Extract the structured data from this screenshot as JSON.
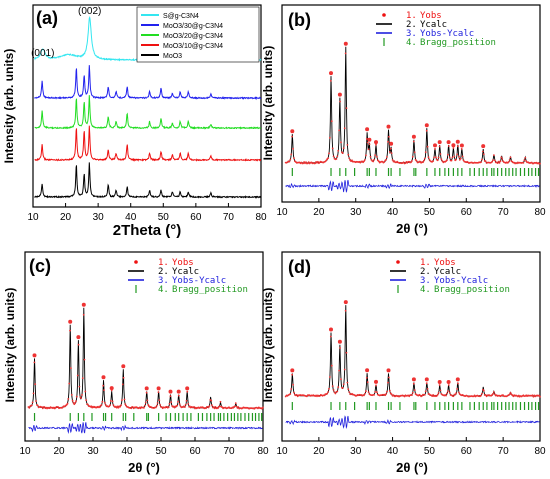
{
  "chart_data": [
    {
      "panel": "(a)",
      "type": "line",
      "xlabel": "2Theta (°)",
      "ylabel": "Intensity (arb. units)",
      "xlim": [
        10,
        80
      ],
      "xticks": [
        10,
        20,
        30,
        40,
        50,
        60,
        70,
        80
      ],
      "peak_labels": [
        {
          "text": "(001)",
          "x": 13
        },
        {
          "text": "(002)",
          "x": 27.4
        }
      ],
      "legend_location": "top-right",
      "series": [
        {
          "name": "S@g-C3N4",
          "color": "#33e6f0",
          "peaks": [
            {
              "x": 13.0,
              "h": 0.25,
              "w": 1.6
            },
            {
              "x": 27.4,
              "h": 1.0,
              "w": 1.2
            },
            {
              "x": 21.0,
              "h": 0.12,
              "w": 6.0
            }
          ]
        },
        {
          "name": "MoO3/30@g-C3N4",
          "color": "#2222ee",
          "peaks": [
            {
              "x": 12.8,
              "h": 0.55
            },
            {
              "x": 23.3,
              "h": 0.95
            },
            {
              "x": 25.7,
              "h": 0.7
            },
            {
              "x": 27.3,
              "h": 1.0
            },
            {
              "x": 33.1,
              "h": 0.35
            },
            {
              "x": 35.5,
              "h": 0.2
            },
            {
              "x": 38.9,
              "h": 0.35
            },
            {
              "x": 45.8,
              "h": 0.2
            },
            {
              "x": 49.3,
              "h": 0.3
            },
            {
              "x": 52.8,
              "h": 0.15
            },
            {
              "x": 55.2,
              "h": 0.2
            },
            {
              "x": 57.7,
              "h": 0.2
            },
            {
              "x": 64.6,
              "h": 0.12
            }
          ]
        },
        {
          "name": "MoO3/20@g-C3N4",
          "color": "#22dd22",
          "peaks": [
            {
              "x": 12.8,
              "h": 0.55
            },
            {
              "x": 23.3,
              "h": 0.95
            },
            {
              "x": 25.7,
              "h": 0.8
            },
            {
              "x": 27.3,
              "h": 1.0
            },
            {
              "x": 33.1,
              "h": 0.35
            },
            {
              "x": 35.5,
              "h": 0.2
            },
            {
              "x": 38.9,
              "h": 0.45
            },
            {
              "x": 45.8,
              "h": 0.2
            },
            {
              "x": 49.3,
              "h": 0.3
            },
            {
              "x": 52.8,
              "h": 0.15
            },
            {
              "x": 55.2,
              "h": 0.2
            },
            {
              "x": 57.7,
              "h": 0.2
            },
            {
              "x": 64.6,
              "h": 0.12
            }
          ]
        },
        {
          "name": "MoO3/10@g-C3N4",
          "color": "#ee1111",
          "peaks": [
            {
              "x": 12.8,
              "h": 0.45
            },
            {
              "x": 23.3,
              "h": 0.95
            },
            {
              "x": 25.7,
              "h": 0.85
            },
            {
              "x": 27.3,
              "h": 1.0
            },
            {
              "x": 33.1,
              "h": 0.3
            },
            {
              "x": 35.5,
              "h": 0.2
            },
            {
              "x": 38.9,
              "h": 0.45
            },
            {
              "x": 45.8,
              "h": 0.2
            },
            {
              "x": 49.3,
              "h": 0.25
            },
            {
              "x": 52.8,
              "h": 0.15
            },
            {
              "x": 55.2,
              "h": 0.2
            },
            {
              "x": 57.7,
              "h": 0.2
            },
            {
              "x": 64.6,
              "h": 0.12
            }
          ]
        },
        {
          "name": "MoO3",
          "color": "#000000",
          "peaks": [
            {
              "x": 12.8,
              "h": 0.4
            },
            {
              "x": 23.3,
              "h": 0.95
            },
            {
              "x": 25.7,
              "h": 0.65
            },
            {
              "x": 27.3,
              "h": 1.0
            },
            {
              "x": 33.1,
              "h": 0.35
            },
            {
              "x": 35.5,
              "h": 0.2
            },
            {
              "x": 38.9,
              "h": 0.3
            },
            {
              "x": 45.8,
              "h": 0.2
            },
            {
              "x": 49.3,
              "h": 0.2
            },
            {
              "x": 52.8,
              "h": 0.15
            },
            {
              "x": 55.2,
              "h": 0.15
            },
            {
              "x": 57.7,
              "h": 0.15
            },
            {
              "x": 64.6,
              "h": 0.12
            }
          ]
        }
      ]
    },
    {
      "panel": "(b)",
      "type": "line",
      "xlabel": "2θ (°)",
      "ylabel": "Intensity (arb. units)",
      "xlim": [
        10,
        80
      ],
      "xticks": [
        10,
        20,
        30,
        40,
        50,
        60,
        70,
        80
      ],
      "legend": [
        {
          "number": "1.",
          "label": "Yobs",
          "color": "#ee1111",
          "marker": "dot"
        },
        {
          "number": "2.",
          "label": "Ycalc",
          "color": "#000000",
          "marker": "line"
        },
        {
          "number": "3.",
          "label": "Yobs-Ycalc",
          "color": "#2222dd",
          "marker": "line"
        },
        {
          "number": "4.",
          "label": "Bragg_position",
          "color": "#229922",
          "marker": "tick"
        }
      ],
      "peaks": [
        {
          "x": 12.8,
          "h": 0.25
        },
        {
          "x": 23.3,
          "h": 0.75
        },
        {
          "x": 25.7,
          "h": 0.55
        },
        {
          "x": 27.3,
          "h": 1.0
        },
        {
          "x": 33.1,
          "h": 0.25
        },
        {
          "x": 33.7,
          "h": 0.15
        },
        {
          "x": 35.5,
          "h": 0.15
        },
        {
          "x": 38.9,
          "h": 0.28
        },
        {
          "x": 39.6,
          "h": 0.12
        },
        {
          "x": 45.8,
          "h": 0.2
        },
        {
          "x": 49.3,
          "h": 0.3
        },
        {
          "x": 51.5,
          "h": 0.12
        },
        {
          "x": 52.8,
          "h": 0.15
        },
        {
          "x": 55.2,
          "h": 0.15
        },
        {
          "x": 56.5,
          "h": 0.12
        },
        {
          "x": 57.7,
          "h": 0.15
        },
        {
          "x": 58.8,
          "h": 0.12
        },
        {
          "x": 64.6,
          "h": 0.12
        },
        {
          "x": 67.5,
          "h": 0.07
        },
        {
          "x": 69.6,
          "h": 0.06
        },
        {
          "x": 72.0,
          "h": 0.05
        },
        {
          "x": 76.0,
          "h": 0.05
        }
      ]
    },
    {
      "panel": "(c)",
      "type": "line",
      "xlabel": "2θ (°)",
      "ylabel": "Intensity (arb. units)",
      "xlim": [
        10,
        80
      ],
      "xticks": [
        10,
        20,
        30,
        40,
        50,
        60,
        70,
        80
      ],
      "legend": [
        {
          "number": "1.",
          "label": "Yobs",
          "color": "#ee1111",
          "marker": "dot"
        },
        {
          "number": "2.",
          "label": "Ycalc",
          "color": "#000000",
          "marker": "line"
        },
        {
          "number": "3.",
          "label": "Yobs-Ycalc",
          "color": "#2222dd",
          "marker": "line"
        },
        {
          "number": "4.",
          "label": "Bragg_position",
          "color": "#229922",
          "marker": "tick"
        }
      ],
      "peaks": [
        {
          "x": 12.8,
          "h": 0.45
        },
        {
          "x": 23.3,
          "h": 0.75
        },
        {
          "x": 25.7,
          "h": 0.6
        },
        {
          "x": 27.3,
          "h": 0.9
        },
        {
          "x": 33.1,
          "h": 0.25
        },
        {
          "x": 35.5,
          "h": 0.15
        },
        {
          "x": 38.9,
          "h": 0.35
        },
        {
          "x": 45.8,
          "h": 0.15
        },
        {
          "x": 49.3,
          "h": 0.15
        },
        {
          "x": 52.8,
          "h": 0.12
        },
        {
          "x": 55.2,
          "h": 0.12
        },
        {
          "x": 57.7,
          "h": 0.15
        },
        {
          "x": 64.6,
          "h": 0.1
        },
        {
          "x": 67.5,
          "h": 0.05
        },
        {
          "x": 72.0,
          "h": 0.04
        }
      ]
    },
    {
      "panel": "(d)",
      "type": "line",
      "xlabel": "2θ (°)",
      "ylabel": "Intensity (arb. units)",
      "xlim": [
        10,
        80
      ],
      "xticks": [
        10,
        20,
        30,
        40,
        50,
        60,
        70,
        80
      ],
      "legend": [
        {
          "number": "1.",
          "label": "Yobs",
          "color": "#ee1111",
          "marker": "dot"
        },
        {
          "number": "2.",
          "label": "Ycalc",
          "color": "#000000",
          "marker": "line"
        },
        {
          "number": "3.",
          "label": "Yobs-Ycalc",
          "color": "#2222dd",
          "marker": "line"
        },
        {
          "number": "4.",
          "label": "Bragg_position",
          "color": "#229922",
          "marker": "tick"
        }
      ],
      "peaks": [
        {
          "x": 12.8,
          "h": 0.25
        },
        {
          "x": 23.3,
          "h": 0.7
        },
        {
          "x": 25.7,
          "h": 0.55
        },
        {
          "x": 27.3,
          "h": 1.0
        },
        {
          "x": 33.1,
          "h": 0.25
        },
        {
          "x": 35.5,
          "h": 0.12
        },
        {
          "x": 38.9,
          "h": 0.25
        },
        {
          "x": 45.8,
          "h": 0.15
        },
        {
          "x": 49.3,
          "h": 0.15
        },
        {
          "x": 52.8,
          "h": 0.12
        },
        {
          "x": 55.2,
          "h": 0.12
        },
        {
          "x": 57.7,
          "h": 0.15
        },
        {
          "x": 64.6,
          "h": 0.1
        },
        {
          "x": 67.5,
          "h": 0.05
        },
        {
          "x": 72.0,
          "h": 0.04
        }
      ]
    }
  ],
  "bragg_positions": [
    12.8,
    23.3,
    25.7,
    27.3,
    29.7,
    33.1,
    33.7,
    35.5,
    38.9,
    39.6,
    42.0,
    45.8,
    46.3,
    49.3,
    51.5,
    52.8,
    54.2,
    55.2,
    56.5,
    57.7,
    58.8,
    61.0,
    62.2,
    63.5,
    64.6,
    65.6,
    66.9,
    67.5,
    68.5,
    69.6,
    70.7,
    71.6,
    72.6,
    73.5,
    74.7,
    75.8,
    76.9,
    77.8,
    78.8,
    79.6
  ]
}
